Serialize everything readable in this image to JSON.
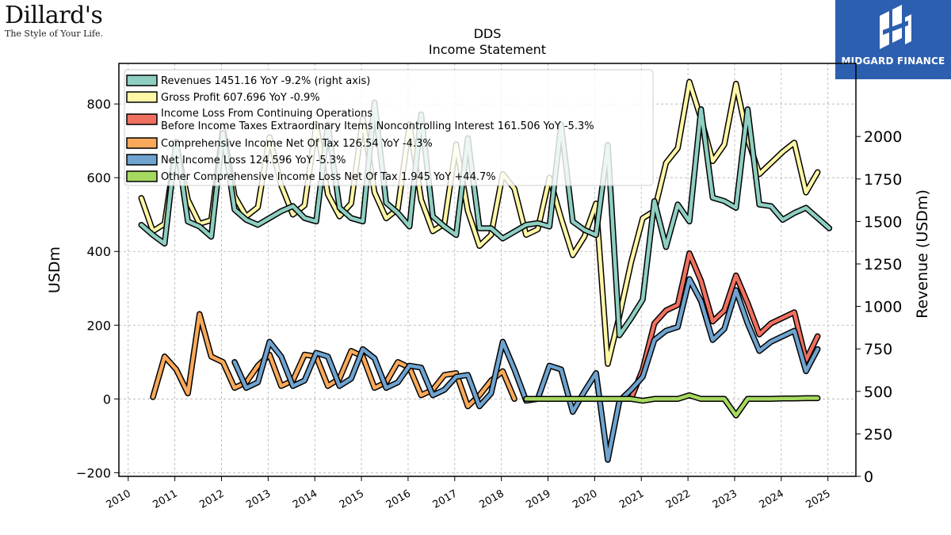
{
  "brand": {
    "left_name": "Dillard's",
    "left_tagline": "The Style of Your Life.",
    "right_name": "MIDGARD FINANCE",
    "right_color": "#2d5fb0"
  },
  "chart_data": {
    "type": "line",
    "title": "DDS",
    "subtitle": "Income Statement",
    "ylabel": "USDm",
    "ylabel_right": "Revenue (USDm)",
    "ylim": [
      -210,
      910
    ],
    "ylim_right": [
      0,
      2430
    ],
    "yticks": [
      -200,
      0,
      200,
      400,
      600,
      800
    ],
    "yticks_right": [
      0,
      250,
      500,
      750,
      1000,
      1250,
      1500,
      1750,
      2000
    ],
    "xlim": [
      2009.8,
      2025.6
    ],
    "xticks": [
      "2010",
      "2011",
      "2012",
      "2013",
      "2014",
      "2015",
      "2016",
      "2017",
      "2018",
      "2019",
      "2020",
      "2021",
      "2022",
      "2023",
      "2024",
      "2025"
    ],
    "grid": true,
    "legend_position": "top-left",
    "series": [
      {
        "name": "Revenues  1451.16 YoY -9.2% (right axis)",
        "axis": "right",
        "color": "#8ecfc2",
        "points": [
          [
            2010.28,
            1480
          ],
          [
            2010.53,
            1420
          ],
          [
            2010.78,
            1370
          ],
          [
            2011.03,
            1970
          ],
          [
            2011.28,
            1500
          ],
          [
            2011.53,
            1470
          ],
          [
            2011.78,
            1410
          ],
          [
            2012.03,
            2020
          ],
          [
            2012.28,
            1570
          ],
          [
            2012.53,
            1510
          ],
          [
            2012.78,
            1480
          ],
          [
            2013.03,
            1520
          ],
          [
            2013.28,
            1560
          ],
          [
            2013.53,
            1590
          ],
          [
            2013.78,
            1520
          ],
          [
            2014.03,
            1500
          ],
          [
            2014.28,
            2070
          ],
          [
            2014.53,
            1580
          ],
          [
            2014.78,
            1520
          ],
          [
            2015.03,
            1500
          ],
          [
            2015.28,
            2200
          ],
          [
            2015.53,
            1610
          ],
          [
            2015.78,
            1550
          ],
          [
            2016.03,
            1470
          ],
          [
            2016.28,
            2130
          ],
          [
            2016.53,
            1530
          ],
          [
            2016.78,
            1470
          ],
          [
            2017.03,
            1420
          ],
          [
            2017.28,
            1990
          ],
          [
            2017.53,
            1460
          ],
          [
            2017.78,
            1460
          ],
          [
            2018.03,
            1400
          ],
          [
            2018.28,
            1440
          ],
          [
            2018.53,
            1480
          ],
          [
            2018.78,
            1490
          ],
          [
            2019.03,
            1470
          ],
          [
            2019.28,
            2070
          ],
          [
            2019.53,
            1500
          ],
          [
            2019.78,
            1450
          ],
          [
            2020.03,
            1420
          ],
          [
            2020.28,
            1950
          ],
          [
            2020.53,
            830
          ],
          [
            2020.78,
            930
          ],
          [
            2021.03,
            1040
          ],
          [
            2021.28,
            1620
          ],
          [
            2021.53,
            1350
          ],
          [
            2021.78,
            1600
          ],
          [
            2022.03,
            1500
          ],
          [
            2022.28,
            2160
          ],
          [
            2022.53,
            1640
          ],
          [
            2022.78,
            1620
          ],
          [
            2023.03,
            1580
          ],
          [
            2023.28,
            2160
          ],
          [
            2023.53,
            1600
          ],
          [
            2023.78,
            1590
          ],
          [
            2024.03,
            1510
          ],
          [
            2024.28,
            1550
          ],
          [
            2024.53,
            1580
          ],
          [
            2024.78,
            1520
          ],
          [
            2025.03,
            1460
          ]
        ]
      },
      {
        "name": "Gross Profit  607.696 YoY -0.9%",
        "axis": "left",
        "color": "#fff6a6",
        "points": [
          [
            2010.28,
            545
          ],
          [
            2010.53,
            455
          ],
          [
            2010.78,
            475
          ],
          [
            2011.03,
            690
          ],
          [
            2011.28,
            540
          ],
          [
            2011.53,
            475
          ],
          [
            2011.78,
            485
          ],
          [
            2012.03,
            735
          ],
          [
            2012.28,
            550
          ],
          [
            2012.53,
            495
          ],
          [
            2012.78,
            520
          ],
          [
            2013.03,
            710
          ],
          [
            2013.28,
            580
          ],
          [
            2013.53,
            500
          ],
          [
            2013.78,
            525
          ],
          [
            2014.03,
            745
          ],
          [
            2014.28,
            555
          ],
          [
            2014.53,
            495
          ],
          [
            2014.78,
            530
          ],
          [
            2015.03,
            760
          ],
          [
            2015.28,
            560
          ],
          [
            2015.53,
            490
          ],
          [
            2015.78,
            515
          ],
          [
            2016.03,
            745
          ],
          [
            2016.28,
            540
          ],
          [
            2016.53,
            455
          ],
          [
            2016.78,
            475
          ],
          [
            2017.03,
            690
          ],
          [
            2017.28,
            510
          ],
          [
            2017.53,
            415
          ],
          [
            2017.78,
            445
          ],
          [
            2018.03,
            610
          ],
          [
            2018.28,
            570
          ],
          [
            2018.53,
            445
          ],
          [
            2018.78,
            460
          ],
          [
            2019.03,
            600
          ],
          [
            2019.28,
            490
          ],
          [
            2019.53,
            390
          ],
          [
            2019.78,
            440
          ],
          [
            2020.03,
            530
          ],
          [
            2020.28,
            95
          ],
          [
            2020.53,
            225
          ],
          [
            2020.78,
            370
          ],
          [
            2021.03,
            490
          ],
          [
            2021.28,
            510
          ],
          [
            2021.53,
            640
          ],
          [
            2021.78,
            680
          ],
          [
            2022.03,
            860
          ],
          [
            2022.28,
            760
          ],
          [
            2022.53,
            645
          ],
          [
            2022.78,
            690
          ],
          [
            2023.03,
            855
          ],
          [
            2023.28,
            705
          ],
          [
            2023.53,
            610
          ],
          [
            2023.78,
            640
          ],
          [
            2024.03,
            670
          ],
          [
            2024.28,
            695
          ],
          [
            2024.53,
            560
          ],
          [
            2024.78,
            615
          ]
        ]
      },
      {
        "name": "Income Loss From Continuing Operations\nBefore Income Taxes Extraordinary Items Noncontrolling Interest  161.506 YoY -5.3%",
        "axis": "left",
        "color": "#f07060",
        "points": [
          [
            2020.78,
            0
          ],
          [
            2021.03,
            80
          ],
          [
            2021.28,
            205
          ],
          [
            2021.53,
            240
          ],
          [
            2021.78,
            255
          ],
          [
            2022.03,
            395
          ],
          [
            2022.28,
            320
          ],
          [
            2022.53,
            210
          ],
          [
            2022.78,
            240
          ],
          [
            2023.03,
            335
          ],
          [
            2023.28,
            260
          ],
          [
            2023.53,
            175
          ],
          [
            2023.78,
            205
          ],
          [
            2024.03,
            220
          ],
          [
            2024.28,
            235
          ],
          [
            2024.53,
            105
          ],
          [
            2024.78,
            170
          ]
        ]
      },
      {
        "name": "Comprehensive Income Net Of Tax  126.54 YoY -4.3%",
        "axis": "left",
        "color": "#f9a95a",
        "points": [
          [
            2010.53,
            5
          ],
          [
            2010.78,
            115
          ],
          [
            2011.03,
            80
          ],
          [
            2011.28,
            15
          ],
          [
            2011.53,
            230
          ],
          [
            2011.78,
            115
          ],
          [
            2012.03,
            100
          ],
          [
            2012.28,
            30
          ],
          [
            2012.53,
            45
          ],
          [
            2012.78,
            90
          ],
          [
            2013.03,
            120
          ],
          [
            2013.28,
            35
          ],
          [
            2013.53,
            50
          ],
          [
            2013.78,
            120
          ],
          [
            2014.03,
            115
          ],
          [
            2014.28,
            35
          ],
          [
            2014.53,
            55
          ],
          [
            2014.78,
            130
          ],
          [
            2015.03,
            115
          ],
          [
            2015.28,
            30
          ],
          [
            2015.53,
            45
          ],
          [
            2015.78,
            100
          ],
          [
            2016.03,
            85
          ],
          [
            2016.28,
            10
          ],
          [
            2016.53,
            25
          ],
          [
            2016.78,
            65
          ],
          [
            2017.03,
            70
          ],
          [
            2017.28,
            -20
          ],
          [
            2017.53,
            10
          ],
          [
            2017.78,
            50
          ],
          [
            2018.03,
            75
          ],
          [
            2018.28,
            0
          ]
        ]
      },
      {
        "name": "Net Income Loss  124.596 YoY -5.3%",
        "axis": "left",
        "color": "#6fa3d0",
        "points": [
          [
            2012.28,
            100
          ],
          [
            2012.53,
            30
          ],
          [
            2012.78,
            45
          ],
          [
            2013.03,
            155
          ],
          [
            2013.28,
            115
          ],
          [
            2013.53,
            35
          ],
          [
            2013.78,
            50
          ],
          [
            2014.03,
            125
          ],
          [
            2014.28,
            115
          ],
          [
            2014.53,
            35
          ],
          [
            2014.78,
            55
          ],
          [
            2015.03,
            135
          ],
          [
            2015.28,
            110
          ],
          [
            2015.53,
            30
          ],
          [
            2015.78,
            45
          ],
          [
            2016.03,
            90
          ],
          [
            2016.28,
            85
          ],
          [
            2016.53,
            10
          ],
          [
            2016.78,
            25
          ],
          [
            2017.03,
            60
          ],
          [
            2017.28,
            65
          ],
          [
            2017.53,
            -20
          ],
          [
            2017.78,
            15
          ],
          [
            2018.03,
            155
          ],
          [
            2018.28,
            80
          ],
          [
            2018.53,
            -5
          ],
          [
            2018.78,
            0
          ],
          [
            2019.03,
            90
          ],
          [
            2019.28,
            80
          ],
          [
            2019.53,
            -35
          ],
          [
            2019.78,
            20
          ],
          [
            2020.03,
            70
          ],
          [
            2020.28,
            -165
          ],
          [
            2020.53,
            -5
          ],
          [
            2020.78,
            25
          ],
          [
            2021.03,
            60
          ],
          [
            2021.28,
            160
          ],
          [
            2021.53,
            185
          ],
          [
            2021.78,
            195
          ],
          [
            2022.03,
            325
          ],
          [
            2022.28,
            265
          ],
          [
            2022.53,
            160
          ],
          [
            2022.78,
            190
          ],
          [
            2023.03,
            295
          ],
          [
            2023.28,
            205
          ],
          [
            2023.53,
            130
          ],
          [
            2023.78,
            155
          ],
          [
            2024.03,
            170
          ],
          [
            2024.28,
            185
          ],
          [
            2024.53,
            75
          ],
          [
            2024.78,
            135
          ]
        ]
      },
      {
        "name": "Other Comprehensive Income Loss Net Of Tax  1.945 YoY +44.7%",
        "axis": "left",
        "color": "#a6d960",
        "points": [
          [
            2018.53,
            0
          ],
          [
            2018.78,
            0
          ],
          [
            2019.03,
            0
          ],
          [
            2019.28,
            0
          ],
          [
            2019.53,
            0
          ],
          [
            2019.78,
            0
          ],
          [
            2020.03,
            0
          ],
          [
            2020.28,
            0
          ],
          [
            2020.53,
            0
          ],
          [
            2020.78,
            0
          ],
          [
            2021.03,
            -5
          ],
          [
            2021.28,
            0
          ],
          [
            2021.53,
            0
          ],
          [
            2021.78,
            0
          ],
          [
            2022.03,
            10
          ],
          [
            2022.28,
            0
          ],
          [
            2022.53,
            0
          ],
          [
            2022.78,
            0
          ],
          [
            2023.03,
            -45
          ],
          [
            2023.28,
            0
          ],
          [
            2023.53,
            0
          ],
          [
            2023.78,
            0
          ],
          [
            2024.03,
            1
          ],
          [
            2024.28,
            1
          ],
          [
            2024.53,
            2
          ],
          [
            2024.78,
            2
          ]
        ]
      }
    ]
  }
}
